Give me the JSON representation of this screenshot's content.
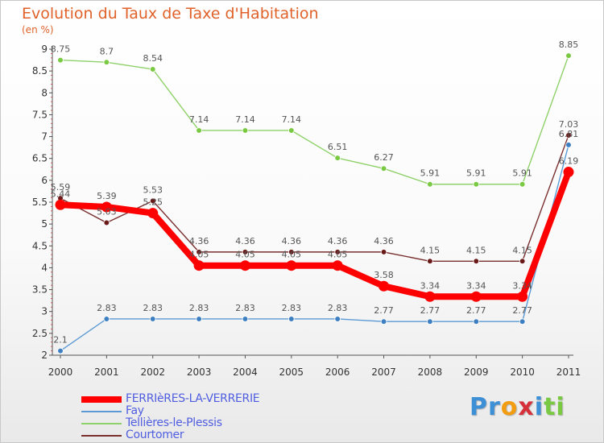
{
  "chart_data": {
    "type": "line",
    "title": "Evolution du Taux de Taxe d'Habitation",
    "subtitle": "(en %)",
    "x": [
      "2000",
      "2001",
      "2002",
      "2003",
      "2004",
      "2005",
      "2006",
      "2007",
      "2008",
      "2009",
      "2010",
      "2011"
    ],
    "ylim": [
      2,
      9
    ],
    "yticks": [
      "2",
      "2.5",
      "3",
      "3.5",
      "4",
      "4.5",
      "5",
      "5.5",
      "6",
      "6.5",
      "7",
      "7.5",
      "8",
      "8.5",
      "9"
    ],
    "grid": false,
    "legend_position": "bottom-left",
    "series": [
      {
        "name": "Tellières-le-Plessis",
        "color": "#8fd16a",
        "marker": "#7ac943",
        "values": [
          8.75,
          8.7,
          8.54,
          7.14,
          7.14,
          7.14,
          6.51,
          6.27,
          5.91,
          5.91,
          5.91,
          8.85
        ],
        "labels": [
          "8.75",
          "8.7",
          "8.54",
          "7.14",
          "7.14",
          "7.14",
          "6.51",
          "6.27",
          "5.91",
          "5.91",
          "5.91",
          "8.85"
        ]
      },
      {
        "name": "Courtomer",
        "color": "#7a2f2f",
        "marker": "#6b1a1a",
        "values": [
          5.59,
          5.03,
          5.53,
          4.36,
          4.36,
          4.36,
          4.36,
          4.36,
          4.15,
          4.15,
          4.15,
          7.03
        ],
        "labels": [
          "5.59",
          "5.03",
          "5.53",
          "4.36",
          "4.36",
          "4.36",
          "4.36",
          "4.36",
          "4.15",
          "4.15",
          "4.15",
          "7.03"
        ]
      },
      {
        "name": "Fay",
        "color": "#5b9ad4",
        "marker": "#3d7fc1",
        "values": [
          2.1,
          2.83,
          2.83,
          2.83,
          2.83,
          2.83,
          2.83,
          2.77,
          2.77,
          2.77,
          2.77,
          6.81
        ],
        "labels": [
          "2.1",
          "2.83",
          "2.83",
          "2.83",
          "2.83",
          "2.83",
          "2.83",
          "2.77",
          "2.77",
          "2.77",
          "2.77",
          "6.81"
        ]
      },
      {
        "name": "FERRIèRES-LA-VERRERIE",
        "color": "#ff0000",
        "marker": "#ff0000",
        "values": [
          5.44,
          5.39,
          5.25,
          4.05,
          4.05,
          4.05,
          4.05,
          3.58,
          3.34,
          3.34,
          3.34,
          6.19
        ],
        "labels": [
          "5.44",
          "5.39",
          "5.25",
          "4.05",
          "4.05",
          "4.05",
          "4.05",
          "3.58",
          "3.34",
          "3.34",
          "3.34",
          "6.19"
        ]
      }
    ]
  },
  "legend": [
    {
      "label": "FERRIèRES-LA-VERRERIE",
      "color": "#ff0000",
      "thickness": 8
    },
    {
      "label": "Fay",
      "color": "#5b9ad4",
      "thickness": 2
    },
    {
      "label": "Tellières-le-Plessis",
      "color": "#8fd16a",
      "thickness": 2
    },
    {
      "label": "Courtomer",
      "color": "#7a2f2f",
      "thickness": 2
    }
  ],
  "logo": {
    "letters": [
      "P",
      "r",
      "o",
      "x",
      "i",
      "t",
      "i"
    ],
    "colors": [
      "#3d8fd6",
      "#3d8fd6",
      "#f39c12",
      "#d6303a",
      "#3d8fd6",
      "#7ac943",
      "#7ac943"
    ]
  }
}
